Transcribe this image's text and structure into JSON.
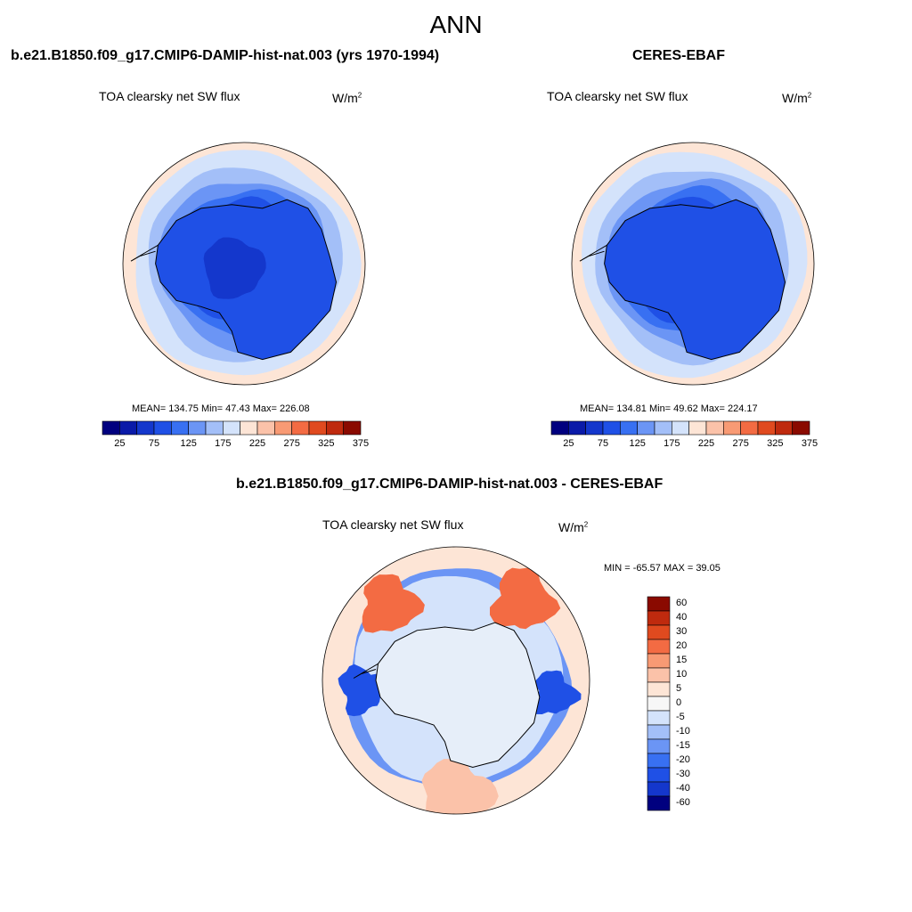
{
  "figure": {
    "title": "ANN",
    "panels": [
      {
        "case_title": "b.e21.B1850.f09_g17.CMIP6-DAMIP-hist-nat.003 (yrs 1970-1994)",
        "variable": "TOA clearsky net SW flux",
        "units": "W/m",
        "units_sup": "2",
        "stats": "MEAN= 134.75  Min=  47.43  Max= 226.08",
        "colorbar_ticks": [
          "25",
          "75",
          "125",
          "175",
          "225",
          "275",
          "325",
          "375"
        ]
      },
      {
        "case_title": "CERES-EBAF",
        "variable": "TOA clearsky net SW flux",
        "units": "W/m",
        "units_sup": "2",
        "stats": "MEAN= 134.81  Min=  49.62  Max= 224.17",
        "colorbar_ticks": [
          "25",
          "75",
          "125",
          "175",
          "225",
          "275",
          "325",
          "375"
        ]
      }
    ],
    "difference": {
      "case_title": "b.e21.B1850.f09_g17.CMIP6-DAMIP-hist-nat.003 - CERES-EBAF",
      "variable": "TOA clearsky net SW flux",
      "units": "W/m",
      "units_sup": "2",
      "stats": "MIN = -65.57 MAX =  39.05",
      "colorbar_labels": [
        "60",
        "40",
        "30",
        "20",
        "15",
        "10",
        "5",
        "0",
        "-5",
        "-10",
        "-15",
        "-20",
        "-30",
        "-40",
        "-60"
      ]
    },
    "colors": {
      "field_colormap": [
        "#00007f",
        "#0a1aa8",
        "#1437cc",
        "#1f50e6",
        "#3870f2",
        "#6b95f5",
        "#a3bff8",
        "#d4e3fb",
        "#fde5d6",
        "#fbc2a9",
        "#f89a74",
        "#f36b43",
        "#e04a1f",
        "#bf2a0e",
        "#8a0a00"
      ],
      "diff_colormap": [
        "#8a0a00",
        "#bf2a0e",
        "#e04a1f",
        "#f36b43",
        "#f89a74",
        "#fbc2a9",
        "#fde5d6",
        "#f7f7f7",
        "#d4e3fb",
        "#a3bff8",
        "#6b95f5",
        "#3870f2",
        "#1f50e6",
        "#1437cc",
        "#00007f"
      ],
      "coastline": "#000000"
    }
  }
}
